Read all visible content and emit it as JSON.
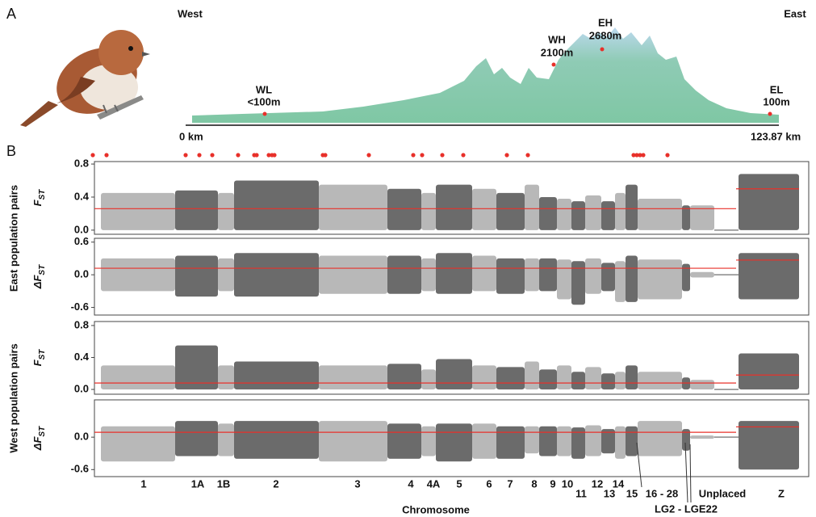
{
  "panel_a": {
    "label": "A",
    "west": "West",
    "east": "East",
    "sites": [
      {
        "name": "WL",
        "elevation": "<100m"
      },
      {
        "name": "WH",
        "elevation": "2100m"
      },
      {
        "name": "EH",
        "elevation": "2680m"
      },
      {
        "name": "EL",
        "elevation": "100m"
      }
    ],
    "distance_start": "0 km",
    "distance_end": "123.87 km"
  },
  "chart_data": {
    "type": "manhattan",
    "panel_label": "B",
    "x_label": "Chromosome",
    "categories": [
      "1",
      "1A",
      "1B",
      "2",
      "3",
      "4",
      "4A",
      "5",
      "6",
      "7",
      "8",
      "9",
      "10",
      "11",
      "12",
      "13",
      "14",
      "15",
      "16 - 28",
      "LG2 - LGE22",
      "Unplaced",
      "Z"
    ],
    "group_labels": [
      "East population pairs",
      "West population pairs"
    ],
    "light_color": "#b8b8b8",
    "dark_color": "#6b6b6b",
    "threshold_color": "#e8302a",
    "panels": [
      {
        "y_label": "F",
        "y_label_sub": "ST",
        "ylim": [
          -0.05,
          0.83
        ],
        "yticks": [
          {
            "value": 0,
            "label": "0.0"
          },
          0.4,
          0.8
        ],
        "max": [
          0.45,
          0.48,
          0.45,
          0.6,
          0.55,
          0.5,
          0.45,
          0.55,
          0.5,
          0.45,
          0.55,
          0.4,
          0.38,
          0.35,
          0.42,
          0.35,
          0.45,
          0.55,
          0.38,
          0.3,
          0.3,
          0.68
        ],
        "min": [
          0,
          0,
          0,
          0,
          0,
          0,
          0,
          0,
          0,
          0,
          0,
          0,
          0,
          0,
          0,
          0,
          0,
          0,
          0,
          0,
          0,
          0
        ],
        "threshold": 0.26,
        "threshold_z": 0.5
      },
      {
        "y_label": "ΔF",
        "y_label_sub": "ST",
        "ylim": [
          -0.74,
          0.67
        ],
        "yticks": [
          -0.6,
          {
            "value": 0,
            "label": "0.0"
          },
          0.6
        ],
        "max": [
          0.3,
          0.35,
          0.3,
          0.4,
          0.35,
          0.35,
          0.3,
          0.4,
          0.35,
          0.3,
          0.3,
          0.3,
          0.28,
          0.25,
          0.3,
          0.22,
          0.25,
          0.35,
          0.28,
          0.2,
          0.05,
          0.4
        ],
        "min": [
          -0.3,
          -0.4,
          -0.3,
          -0.4,
          -0.35,
          -0.35,
          -0.3,
          -0.35,
          -0.3,
          -0.35,
          -0.3,
          -0.3,
          -0.45,
          -0.55,
          -0.35,
          -0.3,
          -0.5,
          -0.5,
          -0.45,
          -0.3,
          -0.05,
          -0.45
        ],
        "threshold": 0.12,
        "threshold_z": 0.27
      },
      {
        "y_label": "F",
        "y_label_sub": "ST",
        "ylim": [
          -0.06,
          0.85
        ],
        "yticks": [
          {
            "value": 0,
            "label": "0.0"
          },
          0.4,
          0.8
        ],
        "max": [
          0.3,
          0.55,
          0.3,
          0.35,
          0.3,
          0.32,
          0.25,
          0.38,
          0.3,
          0.28,
          0.35,
          0.25,
          0.3,
          0.22,
          0.28,
          0.2,
          0.22,
          0.3,
          0.22,
          0.15,
          0.12,
          0.45
        ],
        "min": [
          0,
          0,
          0,
          0,
          0,
          0,
          0,
          0,
          0,
          0,
          0,
          0,
          0,
          0,
          0,
          0,
          0,
          0,
          0,
          0,
          0,
          0
        ],
        "threshold": 0.08,
        "threshold_z": 0.18
      },
      {
        "y_label": "ΔF",
        "y_label_sub": "ST",
        "ylim": [
          -0.73,
          0.69
        ],
        "yticks": [
          -0.6,
          {
            "value": 0,
            "label": "0.0"
          }
        ],
        "max": [
          0.2,
          0.3,
          0.25,
          0.3,
          0.3,
          0.25,
          0.2,
          0.25,
          0.25,
          0.2,
          0.2,
          0.2,
          0.2,
          0.18,
          0.22,
          0.15,
          0.2,
          0.2,
          0.3,
          0.15,
          0.03,
          0.3
        ],
        "min": [
          -0.45,
          -0.35,
          -0.35,
          -0.4,
          -0.45,
          -0.4,
          -0.35,
          -0.45,
          -0.4,
          -0.4,
          -0.3,
          -0.35,
          -0.35,
          -0.4,
          -0.35,
          -0.3,
          -0.4,
          -0.35,
          -0.35,
          -0.25,
          -0.03,
          -0.6
        ],
        "threshold": 0.09,
        "threshold_z": 0.19
      }
    ]
  }
}
